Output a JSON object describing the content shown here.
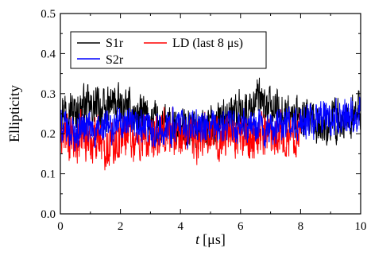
{
  "chart_data": {
    "type": "line",
    "title": "",
    "xlabel_italic": "t",
    "xlabel_unit": "[μs]",
    "ylabel": "Ellipticity",
    "xlim": [
      0,
      10
    ],
    "ylim": [
      0,
      0.5
    ],
    "x_ticks": [
      0,
      2,
      4,
      6,
      8,
      10
    ],
    "y_ticks": [
      0.0,
      0.1,
      0.2,
      0.3,
      0.4,
      0.5
    ],
    "x_tick_labels": [
      "0",
      "2",
      "4",
      "6",
      "8",
      "10"
    ],
    "y_tick_labels": [
      "0.0",
      "0.1",
      "0.2",
      "0.3",
      "0.4",
      "0.5"
    ],
    "legend_position": "top-left",
    "series": [
      {
        "name": "S1r",
        "color": "#000000",
        "x": [
          0,
          0.25,
          0.5,
          0.75,
          1,
          1.25,
          1.5,
          1.75,
          2,
          2.25,
          2.5,
          2.75,
          3,
          3.25,
          3.5,
          3.75,
          4,
          4.25,
          4.5,
          4.75,
          5,
          5.25,
          5.5,
          5.75,
          6,
          6.25,
          6.5,
          6.75,
          7,
          7.25,
          7.5,
          7.75,
          8,
          8.25,
          8.5,
          8.75,
          9,
          9.25,
          9.5,
          9.75,
          10
        ],
        "y": [
          0.26,
          0.27,
          0.25,
          0.27,
          0.26,
          0.27,
          0.25,
          0.28,
          0.26,
          0.26,
          0.24,
          0.25,
          0.23,
          0.22,
          0.22,
          0.21,
          0.21,
          0.22,
          0.22,
          0.21,
          0.22,
          0.23,
          0.24,
          0.25,
          0.26,
          0.25,
          0.29,
          0.27,
          0.26,
          0.26,
          0.25,
          0.24,
          0.24,
          0.23,
          0.22,
          0.22,
          0.23,
          0.23,
          0.24,
          0.24,
          0.26
        ]
      },
      {
        "name": "LD (last 8 μs)",
        "color": "#ff0000",
        "x": [
          0,
          0.25,
          0.5,
          0.75,
          1,
          1.25,
          1.5,
          1.75,
          2,
          2.25,
          2.5,
          2.75,
          3,
          3.25,
          3.5,
          3.75,
          4,
          4.25,
          4.5,
          4.75,
          5,
          5.25,
          5.5,
          5.75,
          6,
          6.25,
          6.5,
          6.75,
          7,
          7.25,
          7.5,
          7.75,
          8
        ],
        "y": [
          0.2,
          0.19,
          0.17,
          0.2,
          0.18,
          0.2,
          0.17,
          0.18,
          0.19,
          0.21,
          0.18,
          0.19,
          0.17,
          0.19,
          0.2,
          0.21,
          0.19,
          0.2,
          0.18,
          0.21,
          0.2,
          0.19,
          0.2,
          0.21,
          0.19,
          0.18,
          0.2,
          0.21,
          0.2,
          0.21,
          0.19,
          0.2,
          0.21
        ]
      },
      {
        "name": "S2r",
        "color": "#0000ff",
        "x": [
          0,
          0.25,
          0.5,
          0.75,
          1,
          1.25,
          1.5,
          1.75,
          2,
          2.25,
          2.5,
          2.75,
          3,
          3.25,
          3.5,
          3.75,
          4,
          4.25,
          4.5,
          4.75,
          5,
          5.25,
          5.5,
          5.75,
          6,
          6.25,
          6.5,
          6.75,
          7,
          7.25,
          7.5,
          7.75,
          8,
          8.25,
          8.5,
          8.75,
          9,
          9.25,
          9.5,
          9.75,
          10
        ],
        "y": [
          0.22,
          0.21,
          0.2,
          0.22,
          0.21,
          0.2,
          0.22,
          0.21,
          0.23,
          0.22,
          0.21,
          0.22,
          0.21,
          0.21,
          0.21,
          0.22,
          0.22,
          0.21,
          0.22,
          0.21,
          0.21,
          0.22,
          0.21,
          0.22,
          0.21,
          0.22,
          0.22,
          0.21,
          0.21,
          0.22,
          0.23,
          0.22,
          0.22,
          0.23,
          0.23,
          0.24,
          0.24,
          0.24,
          0.25,
          0.25,
          0.26
        ]
      }
    ]
  }
}
